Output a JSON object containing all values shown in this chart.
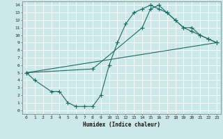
{
  "title": "",
  "xlabel": "Humidex (Indice chaleur)",
  "bg_color": "#cce8e8",
  "grid_color": "#ffffff",
  "line_color": "#1a6b60",
  "xlim": [
    -0.5,
    23.5
  ],
  "ylim": [
    -0.5,
    14.5
  ],
  "xticks": [
    0,
    1,
    2,
    3,
    4,
    5,
    6,
    7,
    8,
    9,
    10,
    11,
    12,
    13,
    14,
    15,
    16,
    17,
    18,
    19,
    20,
    21,
    22,
    23
  ],
  "yticks": [
    0,
    1,
    2,
    3,
    4,
    5,
    6,
    7,
    8,
    9,
    10,
    11,
    12,
    13,
    14
  ],
  "curve1_x": [
    0,
    1,
    3,
    4,
    5,
    6,
    7,
    8,
    9,
    10,
    11,
    12,
    13,
    14,
    15,
    16,
    17,
    18,
    19,
    20,
    21,
    22,
    23
  ],
  "curve1_y": [
    5,
    4,
    2.5,
    2.5,
    1,
    0.5,
    0.5,
    0.5,
    2,
    6,
    9,
    11.5,
    13,
    13.5,
    14,
    13.5,
    13,
    12,
    11,
    10.5,
    10,
    9.5,
    9
  ],
  "curve2_x": [
    0,
    23
  ],
  "curve2_y": [
    5,
    9
  ],
  "curve3_x": [
    0,
    8,
    14,
    15,
    16,
    17,
    18,
    19,
    20,
    21,
    22,
    23
  ],
  "curve3_y": [
    5,
    5.5,
    11,
    13.5,
    14,
    13,
    12,
    11,
    11,
    10,
    9.5,
    9
  ],
  "tick_fontsize": 4.5,
  "xlabel_fontsize": 5.5
}
